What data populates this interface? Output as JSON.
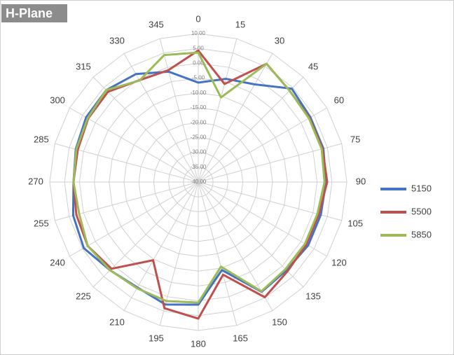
{
  "chart_data": {
    "type": "radar",
    "title": "H-Plane",
    "categories": [
      "0",
      "15",
      "30",
      "45",
      "60",
      "75",
      "90",
      "105",
      "120",
      "135",
      "150",
      "165",
      "180",
      "195",
      "210",
      "225",
      "240",
      "255",
      "270",
      "285",
      "300",
      "315",
      "330",
      "345"
    ],
    "ylim": [
      -40,
      10
    ],
    "yticks": [
      {
        "value": -40,
        "label": "-40.00"
      },
      {
        "value": -35,
        "label": "-35.00"
      },
      {
        "value": -30,
        "label": "-30.00"
      },
      {
        "value": -25,
        "label": "-25.00"
      },
      {
        "value": -20,
        "label": "-20.00"
      },
      {
        "value": -15,
        "label": "-15.00"
      },
      {
        "value": -10,
        "label": "-10.00"
      },
      {
        "value": -5,
        "label": "-5.00"
      },
      {
        "value": 0,
        "label": "0.00"
      },
      {
        "value": 5,
        "label": "5.00"
      },
      {
        "value": 10,
        "label": "10.00"
      }
    ],
    "grid": true,
    "legend": "right",
    "series": [
      {
        "name": "5150",
        "color": "#4472c4",
        "values": [
          -6.5,
          -4,
          -2,
          4.5,
          3.6,
          3.6,
          3,
          2.7,
          2.7,
          2,
          2.7,
          -9.3,
          1.3,
          2.7,
          1,
          2,
          4.5,
          3.6,
          2,
          2.7,
          3.6,
          3.8,
          2,
          -1.5
        ]
      },
      {
        "name": "5500",
        "color": "#c0504d",
        "values": [
          4.3,
          -5.8,
          6,
          3.5,
          3.2,
          3.3,
          3.4,
          2,
          2,
          2.5,
          4.8,
          -7.7,
          6,
          4,
          -9.6,
          1.3,
          3,
          2.5,
          2,
          2,
          2.8,
          3,
          -0.4,
          -1
        ]
      },
      {
        "name": "5850",
        "color": "#9bbb59",
        "values": [
          3.6,
          -10.5,
          6,
          3.5,
          3,
          3,
          2.5,
          1.5,
          1.5,
          1.5,
          2.5,
          -10.5,
          0.6,
          1.5,
          1.3,
          2,
          3,
          1.5,
          2,
          2.5,
          3,
          3.8,
          -0.5,
          4.3
        ]
      }
    ]
  }
}
